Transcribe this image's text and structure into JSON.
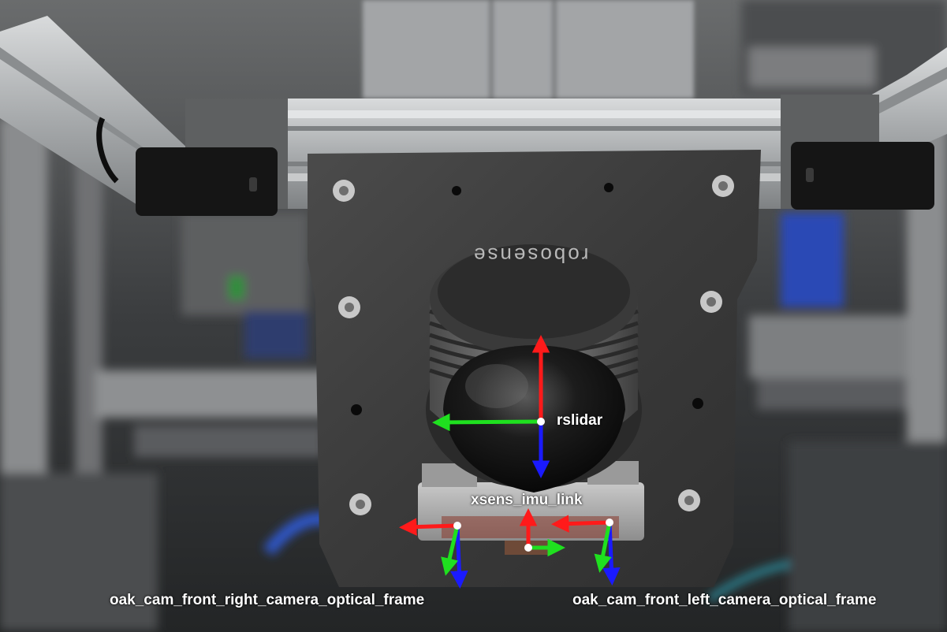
{
  "brand": "robosense",
  "frames": {
    "rslidar": "rslidar",
    "imu": "xsens_imu_link",
    "cam_right": "oak_cam_front_right_camera_optical_frame",
    "cam_left": "oak_cam_front_left_camera_optical_frame"
  },
  "axis_colors": {
    "x": "#ff1a1a",
    "y": "#1fe01f",
    "z": "#1a1aff",
    "origin": "#ffffff"
  }
}
